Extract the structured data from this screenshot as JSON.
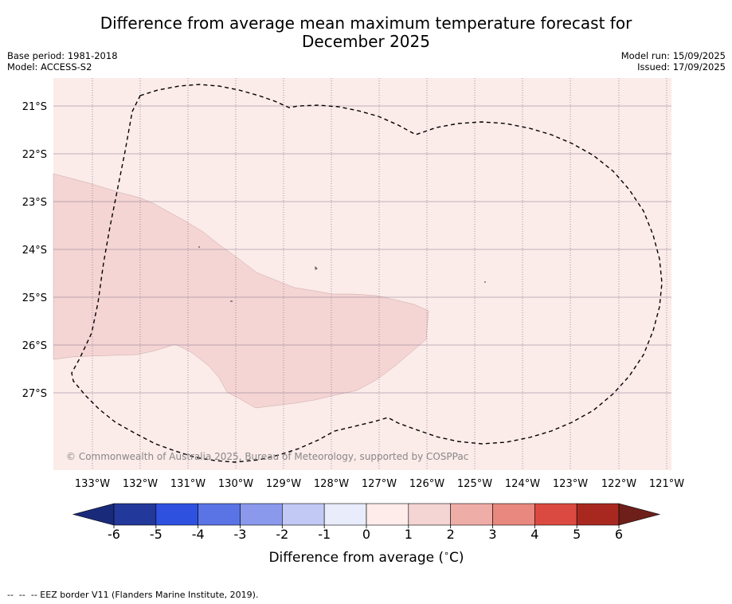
{
  "title": {
    "line1": "Difference from average mean maximum temperature forecast for",
    "line2": "December 2025"
  },
  "meta_left": {
    "base_period": "Base period: 1981-2018",
    "model": "Model: ACCESS-S2"
  },
  "meta_right": {
    "model_run": "Model run: 15/09/2025",
    "issued": "Issued: 17/09/2025"
  },
  "map": {
    "lon_labels": [
      "133°W",
      "132°W",
      "131°W",
      "130°W",
      "129°W",
      "128°W",
      "127°W",
      "126°W",
      "125°W",
      "124°W",
      "123°W",
      "122°W",
      "121°W"
    ],
    "lat_labels": [
      "21°S",
      "22°S",
      "23°S",
      "24°S",
      "25°S",
      "26°S",
      "27°S"
    ],
    "copyright": "© Commonwealth of Australia 2025, Bureau of Meteorology, supported by COSPPac",
    "colors": {
      "anomaly_0_to_1": "#fbebe9",
      "anomaly_1_to_2": "#f4d5d4",
      "gridline": "#6a5a7a",
      "eez_border": "#000000"
    }
  },
  "colorbar": {
    "ticks": [
      "-6",
      "-5",
      "-4",
      "-3",
      "-2",
      "-1",
      "0",
      "1",
      "2",
      "3",
      "4",
      "5",
      "6"
    ],
    "colors": [
      "#23389b",
      "#2e51e0",
      "#5a74e6",
      "#8a99ec",
      "#c2c9f4",
      "#e9ecfb",
      "#fdecea",
      "#f4d5d4",
      "#efada7",
      "#e8887f",
      "#db4a40",
      "#a82820"
    ],
    "under_color": "#1a2a7a",
    "over_color": "#6e1f1a",
    "label": "Difference from average ($^\\circ$C)",
    "label_display": "Difference from average (",
    "label_unit": "C)"
  },
  "footer": "--  --  -- EEZ border V11 (Flanders Marine Institute, 2019)."
}
